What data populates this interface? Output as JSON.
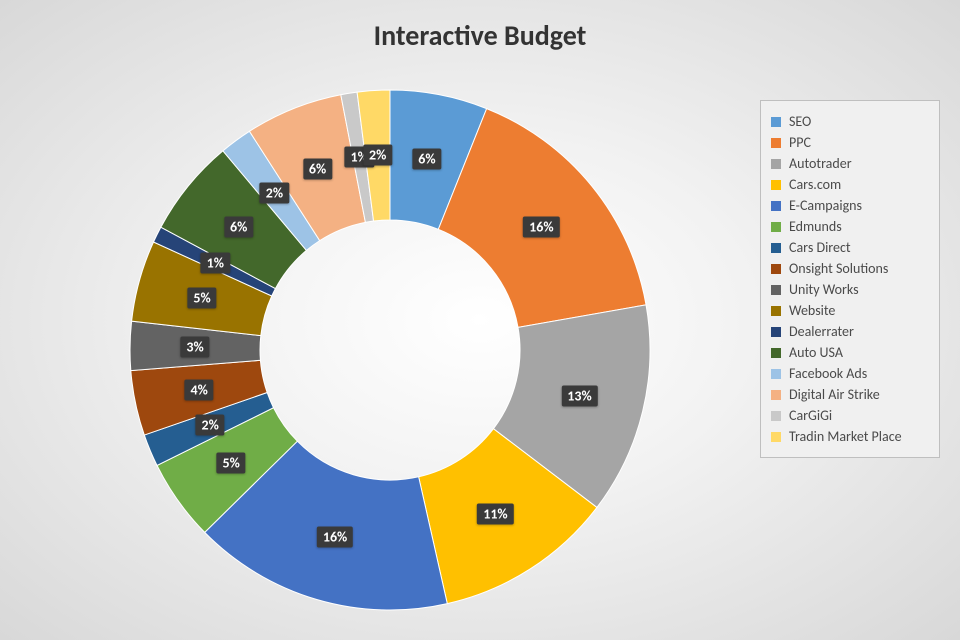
{
  "chart": {
    "type": "donut",
    "title": "Interactive Budget",
    "title_fontsize": 28,
    "title_color": "#333333",
    "background": "radial-gradient",
    "donut_inner_ratio": 0.5,
    "label_bg": "#3a3a3a",
    "label_color": "#ffffff",
    "label_fontsize": 14,
    "legend_bg": "#f0f0f0",
    "legend_border": "#bfbfbf",
    "legend_fontsize": 14,
    "start_angle_deg": 0,
    "slices": [
      {
        "name": "SEO",
        "value": 6,
        "label": "6%",
        "color": "#5b9bd5"
      },
      {
        "name": "PPC",
        "value": 16,
        "label": "16%",
        "color": "#ed7d31"
      },
      {
        "name": "Autotrader",
        "value": 13,
        "label": "13%",
        "color": "#a5a5a5"
      },
      {
        "name": "Cars.com",
        "value": 11,
        "label": "11%",
        "color": "#ffc000"
      },
      {
        "name": "E-Campaigns",
        "value": 16,
        "label": "16%",
        "color": "#4472c4"
      },
      {
        "name": "Edmunds",
        "value": 5,
        "label": "5%",
        "color": "#70ad47"
      },
      {
        "name": "Cars Direct",
        "value": 2,
        "label": "2%",
        "color": "#255e91"
      },
      {
        "name": "Onsight Solutions",
        "value": 4,
        "label": "4%",
        "color": "#9e480e"
      },
      {
        "name": "Unity Works",
        "value": 3,
        "label": "3%",
        "color": "#636363"
      },
      {
        "name": "Website",
        "value": 5,
        "label": "5%",
        "color": "#997300"
      },
      {
        "name": "Dealerrater",
        "value": 1,
        "label": "1%",
        "color": "#264478"
      },
      {
        "name": "Auto USA",
        "value": 6,
        "label": "6%",
        "color": "#43682b"
      },
      {
        "name": "Facebook Ads",
        "value": 2,
        "label": "2%",
        "color": "#9dc3e6"
      },
      {
        "name": "Digital Air Strike",
        "value": 6,
        "label": "6%",
        "color": "#f4b183"
      },
      {
        "name": "CarGiGi",
        "value": 1,
        "label": "1%",
        "color": "#c9c9c9"
      },
      {
        "name": "Tradin Market Place",
        "value": 2,
        "label": "2%",
        "color": "#ffd966"
      }
    ]
  }
}
